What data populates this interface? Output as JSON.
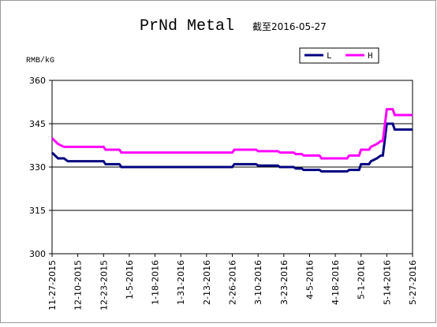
{
  "chart_data": {
    "type": "line",
    "title": "PrNd Metal",
    "subtitle": "截至2016-05-27",
    "y_label": "RMB/kG",
    "x": [
      "11-27-2015",
      "11-30-2015",
      "12-3-2015",
      "12-5-2015",
      "12-23-2015",
      "12-24-2015",
      "12-31-2015",
      "1-1-2016",
      "2-26-2016",
      "2-27-2016",
      "3-9-2016",
      "3-10-2016",
      "3-20-2016",
      "3-21-2016",
      "3-28-2016",
      "3-29-2016",
      "4-1-2016",
      "4-2-2016",
      "4-10-2016",
      "4-11-2016",
      "4-24-2016",
      "4-25-2016",
      "4-30-2016",
      "5-1-2016",
      "5-5-2016",
      "5-6-2016",
      "5-9-2016",
      "5-11-2016",
      "5-12-2016",
      "5-14-2016",
      "5-17-2016",
      "5-18-2016",
      "5-27-2016"
    ],
    "series": [
      {
        "name": "L",
        "color": "#000080",
        "values": [
          335,
          333,
          333,
          332,
          332,
          331,
          331,
          330,
          330,
          331,
          331,
          330.5,
          330.5,
          330,
          330,
          329.5,
          329.5,
          329,
          329,
          328.5,
          328.5,
          329,
          329,
          331,
          331,
          332,
          333,
          334,
          334,
          345,
          345,
          343,
          343
        ]
      },
      {
        "name": "H",
        "color": "#ff00ff",
        "values": [
          340,
          338,
          337,
          337,
          337,
          336,
          336,
          335,
          335,
          336,
          336,
          335.5,
          335.5,
          335,
          335,
          334.5,
          334.5,
          334,
          334,
          333,
          333,
          334,
          334,
          336,
          336,
          337,
          338,
          339,
          339,
          350,
          350,
          348,
          348
        ]
      }
    ],
    "xlim": [
      "11-27-2015",
      "5-27-2016"
    ],
    "xticks": [
      "11-27-2015",
      "12-10-2015",
      "12-23-2015",
      "1-5-2016",
      "1-18-2016",
      "1-31-2016",
      "2-13-2016",
      "2-26-2016",
      "3-10-2016",
      "3-23-2016",
      "4-5-2016",
      "4-18-2016",
      "5-1-2016",
      "5-14-2016",
      "5-27-2016"
    ],
    "ylim": [
      300,
      360
    ],
    "yticks": [
      300,
      315,
      330,
      345,
      360
    ],
    "grid": true,
    "legend": "top-right"
  }
}
